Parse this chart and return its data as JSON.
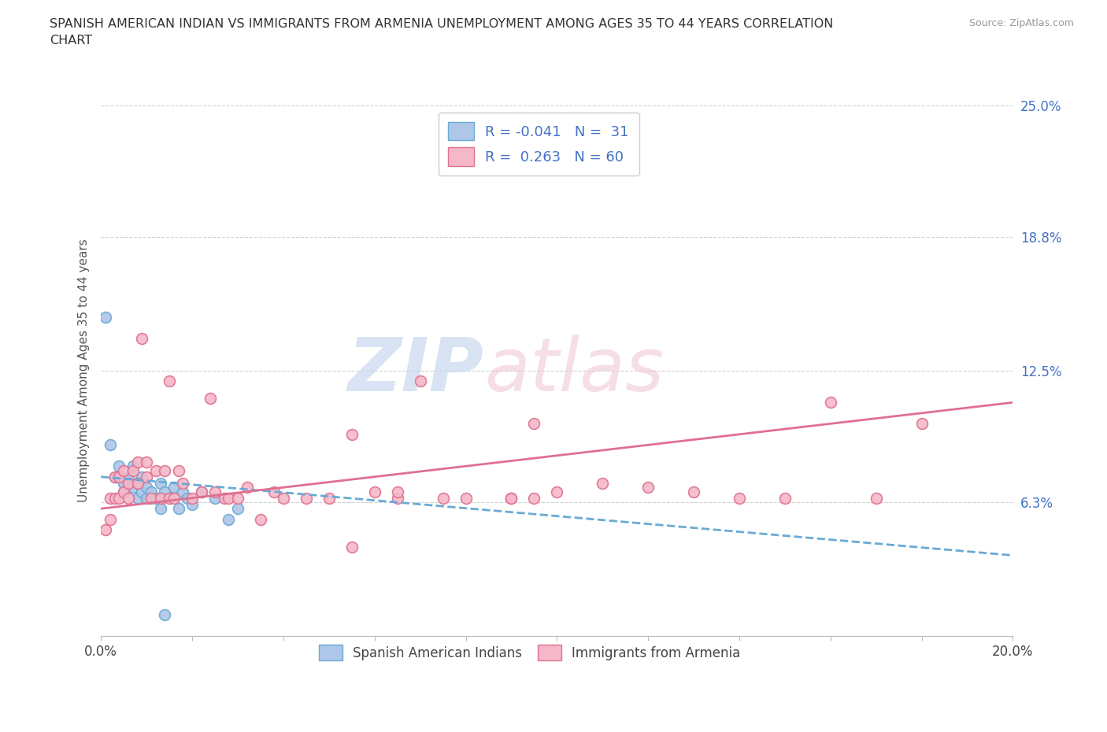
{
  "title": "SPANISH AMERICAN INDIAN VS IMMIGRANTS FROM ARMENIA UNEMPLOYMENT AMONG AGES 35 TO 44 YEARS CORRELATION\nCHART",
  "source": "Source: ZipAtlas.com",
  "ylabel": "Unemployment Among Ages 35 to 44 years",
  "xlim": [
    0.0,
    0.2
  ],
  "ylim": [
    0.0,
    0.25
  ],
  "xticks": [
    0.0,
    0.02,
    0.04,
    0.06,
    0.08,
    0.1,
    0.12,
    0.14,
    0.16,
    0.18,
    0.2
  ],
  "xtick_labels": [
    "0.0%",
    "",
    "",
    "",
    "",
    "",
    "",
    "",
    "",
    "",
    "20.0%"
  ],
  "yticks": [
    0.0,
    0.063,
    0.125,
    0.188,
    0.25
  ],
  "ytick_labels": [
    "",
    "6.3%",
    "12.5%",
    "18.8%",
    "25.0%"
  ],
  "series1_color": "#aec6e8",
  "series1_edgecolor": "#6aaad4",
  "series2_color": "#f4b8c8",
  "series2_edgecolor": "#e07090",
  "trendline1_color": "#6aaad4",
  "trendline2_color": "#e07090",
  "legend_R1": "-0.041",
  "legend_N1": "31",
  "legend_R2": "0.263",
  "legend_N2": "60",
  "legend_label1": "Spanish American Indians",
  "legend_label2": "Immigrants from Armenia",
  "watermark_zip": "ZIP",
  "watermark_atlas": "atlas",
  "background_color": "#ffffff",
  "blue_scatter_x": [
    0.001,
    0.002,
    0.003,
    0.004,
    0.005,
    0.005,
    0.006,
    0.007,
    0.007,
    0.008,
    0.008,
    0.009,
    0.009,
    0.01,
    0.01,
    0.011,
    0.012,
    0.013,
    0.013,
    0.014,
    0.015,
    0.016,
    0.017,
    0.018,
    0.019,
    0.02,
    0.022,
    0.025,
    0.028,
    0.03,
    0.014
  ],
  "blue_scatter_y": [
    0.15,
    0.09,
    0.075,
    0.08,
    0.072,
    0.068,
    0.075,
    0.07,
    0.08,
    0.065,
    0.072,
    0.068,
    0.075,
    0.065,
    0.07,
    0.068,
    0.065,
    0.072,
    0.06,
    0.068,
    0.065,
    0.07,
    0.06,
    0.068,
    0.065,
    0.062,
    0.068,
    0.065,
    0.055,
    0.06,
    0.01
  ],
  "pink_scatter_x": [
    0.001,
    0.002,
    0.002,
    0.003,
    0.003,
    0.004,
    0.004,
    0.005,
    0.005,
    0.006,
    0.006,
    0.007,
    0.008,
    0.008,
    0.009,
    0.01,
    0.01,
    0.011,
    0.012,
    0.013,
    0.014,
    0.015,
    0.015,
    0.016,
    0.017,
    0.018,
    0.02,
    0.022,
    0.024,
    0.025,
    0.027,
    0.028,
    0.03,
    0.032,
    0.035,
    0.038,
    0.04,
    0.045,
    0.05,
    0.055,
    0.06,
    0.065,
    0.07,
    0.075,
    0.08,
    0.09,
    0.095,
    0.1,
    0.11,
    0.12,
    0.13,
    0.14,
    0.15,
    0.16,
    0.17,
    0.18,
    0.055,
    0.065,
    0.09,
    0.095
  ],
  "pink_scatter_y": [
    0.05,
    0.055,
    0.065,
    0.065,
    0.075,
    0.065,
    0.075,
    0.068,
    0.078,
    0.065,
    0.072,
    0.078,
    0.072,
    0.082,
    0.14,
    0.075,
    0.082,
    0.065,
    0.078,
    0.065,
    0.078,
    0.065,
    0.12,
    0.065,
    0.078,
    0.072,
    0.065,
    0.068,
    0.112,
    0.068,
    0.065,
    0.065,
    0.065,
    0.07,
    0.055,
    0.068,
    0.065,
    0.065,
    0.065,
    0.042,
    0.068,
    0.065,
    0.12,
    0.065,
    0.065,
    0.065,
    0.1,
    0.068,
    0.072,
    0.07,
    0.068,
    0.065,
    0.065,
    0.11,
    0.065,
    0.1,
    0.095,
    0.068,
    0.065,
    0.065
  ],
  "trendline1_x0": 0.0,
  "trendline1_y0": 0.075,
  "trendline1_x1": 0.2,
  "trendline1_y1": 0.038,
  "trendline2_x0": 0.0,
  "trendline2_y0": 0.06,
  "trendline2_x1": 0.2,
  "trendline2_y1": 0.11
}
